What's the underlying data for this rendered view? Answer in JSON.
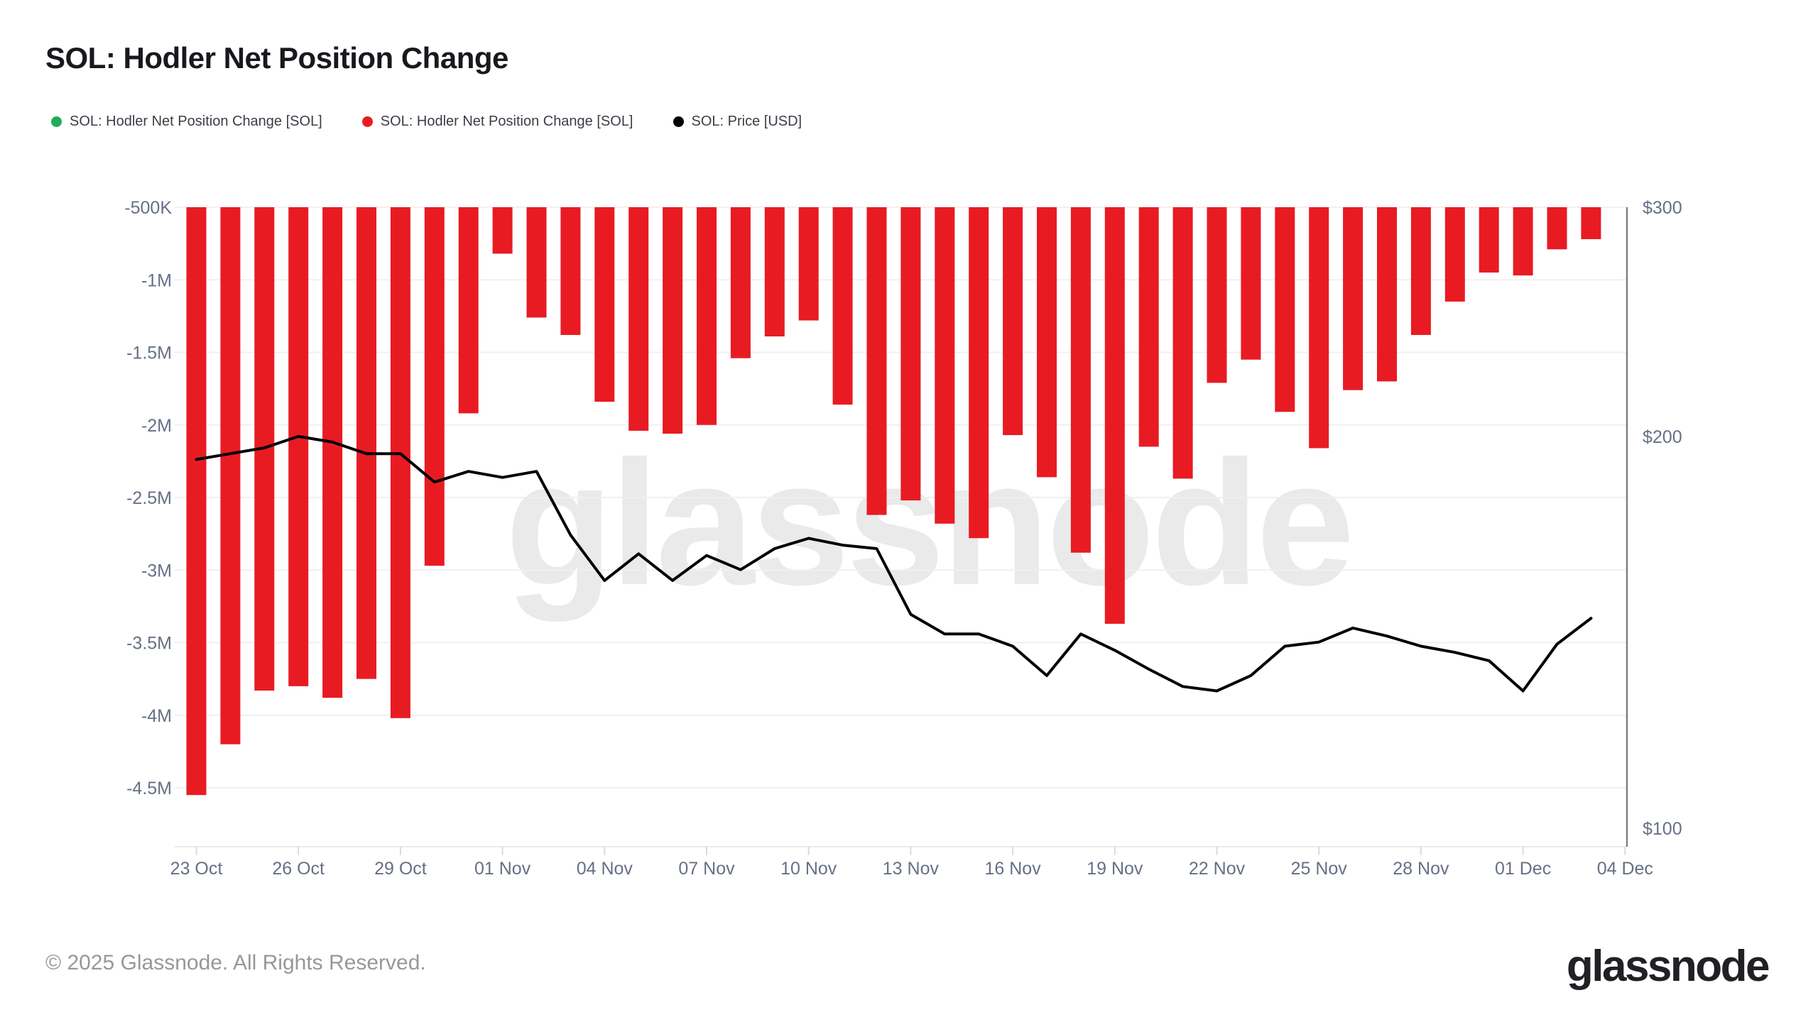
{
  "title": "SOL: Hodler Net Position Change",
  "legend": [
    {
      "label": "SOL: Hodler Net Position Change [SOL]",
      "color": "#1fae58"
    },
    {
      "label": "SOL: Hodler Net Position Change [SOL]",
      "color": "#e81b23"
    },
    {
      "label": "SOL: Price [USD]",
      "color": "#000000"
    }
  ],
  "watermark_text": "glassnode",
  "footer": {
    "copyright": "© 2025 Glassnode. All Rights Reserved.",
    "brand": "glassnode"
  },
  "chart_data": {
    "type": "bar+line",
    "title": "SOL: Hodler Net Position Change",
    "x": [
      "23 Oct",
      "24 Oct",
      "25 Oct",
      "26 Oct",
      "27 Oct",
      "28 Oct",
      "29 Oct",
      "30 Oct",
      "31 Oct",
      "01 Nov",
      "02 Nov",
      "03 Nov",
      "04 Nov",
      "05 Nov",
      "06 Nov",
      "07 Nov",
      "08 Nov",
      "09 Nov",
      "10 Nov",
      "11 Nov",
      "12 Nov",
      "13 Nov",
      "14 Nov",
      "15 Nov",
      "16 Nov",
      "17 Nov",
      "18 Nov",
      "19 Nov",
      "20 Nov",
      "21 Nov",
      "22 Nov",
      "23 Nov",
      "24 Nov",
      "25 Nov",
      "26 Nov",
      "27 Nov",
      "28 Nov",
      "29 Nov",
      "30 Nov",
      "01 Dec",
      "02 Dec",
      "03 Dec"
    ],
    "series": [
      {
        "name": "SOL: Hodler Net Position Change [SOL]",
        "type": "bar",
        "axis": "left",
        "color": "#e81b23",
        "values": [
          -4550000,
          -4200000,
          -3830000,
          -3800000,
          -3880000,
          -3750000,
          -4020000,
          -2970000,
          -1920000,
          -820000,
          -1260000,
          -1380000,
          -1840000,
          -2040000,
          -2060000,
          -2000000,
          -1540000,
          -1390000,
          -1280000,
          -1860000,
          -2620000,
          -2520000,
          -2680000,
          -2780000,
          -2070000,
          -2360000,
          -2880000,
          -3370000,
          -2150000,
          -2370000,
          -1710000,
          -1550000,
          -1910000,
          -2160000,
          -1760000,
          -1700000,
          -1380000,
          -1150000,
          -950000,
          -970000,
          -790000,
          -720000
        ]
      },
      {
        "name": "SOL: Price [USD]",
        "type": "line",
        "axis": "right",
        "color": "#000000",
        "values": [
          192,
          194,
          196,
          200,
          198,
          194,
          194,
          184.5,
          188,
          186,
          188,
          168,
          155,
          162.5,
          155,
          162,
          158,
          164,
          167,
          165,
          164,
          146,
          141,
          141,
          138,
          131,
          141,
          137,
          132.5,
          128.5,
          127.5,
          131,
          138,
          139,
          142.5,
          140.5,
          138,
          136.5,
          134.5,
          127.5,
          138.5,
          145
        ]
      }
    ],
    "left_axis": {
      "tick_labels": [
        "-500K",
        "-1M",
        "-1.5M",
        "-2M",
        "-2.5M",
        "-3M",
        "-3.5M",
        "-4M",
        "-4.5M"
      ],
      "tick_values": [
        -500000,
        -1000000,
        -1500000,
        -2000000,
        -2500000,
        -3000000,
        -3500000,
        -4000000,
        -4500000
      ],
      "visible_top": -500000,
      "grid": true
    },
    "right_axis": {
      "scale": "log",
      "tick_labels": [
        "$300",
        "$200",
        "$100"
      ],
      "tick_values": [
        300,
        200,
        100
      ]
    },
    "x_axis": {
      "tick_labels": [
        "23 Oct",
        "26 Oct",
        "29 Oct",
        "01 Nov",
        "04 Nov",
        "07 Nov",
        "10 Nov",
        "13 Nov",
        "16 Nov",
        "19 Nov",
        "22 Nov",
        "25 Nov",
        "28 Nov",
        "01 Dec",
        "04 Dec"
      ],
      "tick_every_days": 3
    }
  }
}
